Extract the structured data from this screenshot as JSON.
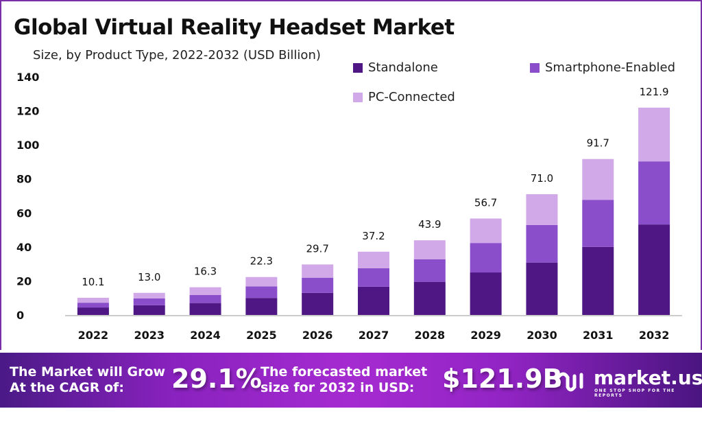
{
  "colors": {
    "standalone": "#4e1784",
    "smartphone": "#8a4ecb",
    "pc": "#d1a8e8",
    "frame": "#7b2fa6",
    "axis": "#cccccc"
  },
  "chart_data": {
    "type": "bar",
    "stacked": true,
    "title": "Global Virtual Reality Headset Market",
    "subtitle": "Size, by Product Type, 2022-2032 (USD Billion)",
    "xlabel": "",
    "ylabel": "",
    "ylim": [
      0,
      140
    ],
    "yticks": [
      0,
      20,
      40,
      60,
      80,
      100,
      120,
      140
    ],
    "grid": false,
    "legend_position": "top-right",
    "categories": [
      "2022",
      "2023",
      "2024",
      "2025",
      "2026",
      "2027",
      "2028",
      "2029",
      "2030",
      "2031",
      "2032"
    ],
    "series": [
      {
        "name": "Standalone",
        "values": [
          4.4,
          5.7,
          7.0,
          10.0,
          13.0,
          16.6,
          19.5,
          25.0,
          30.8,
          40.0,
          53.2
        ]
      },
      {
        "name": "Smartphone-Enabled",
        "values": [
          2.8,
          4.0,
          4.7,
          6.8,
          8.9,
          10.9,
          13.2,
          17.3,
          22.1,
          27.7,
          37.1
        ]
      },
      {
        "name": "PC-Connected",
        "values": [
          2.9,
          3.3,
          4.6,
          5.5,
          7.8,
          9.7,
          11.2,
          14.4,
          18.1,
          24.0,
          31.6
        ]
      }
    ],
    "totals": [
      "10.1",
      "13.0",
      "16.3",
      "22.3",
      "29.7",
      "37.2",
      "43.9",
      "56.7",
      "71.0",
      "91.7",
      "121.9"
    ]
  },
  "banner": {
    "cagr_label_line1": "The Market will Grow",
    "cagr_label_line2": "At the CAGR of:",
    "cagr_value": "29.1%",
    "forecast_label_line1": "The forecasted market",
    "forecast_label_line2": "size for 2032 in USD:",
    "forecast_value": "$121.9B",
    "logo_name": "market.us",
    "logo_tagline": "ONE STOP SHOP FOR THE REPORTS"
  }
}
